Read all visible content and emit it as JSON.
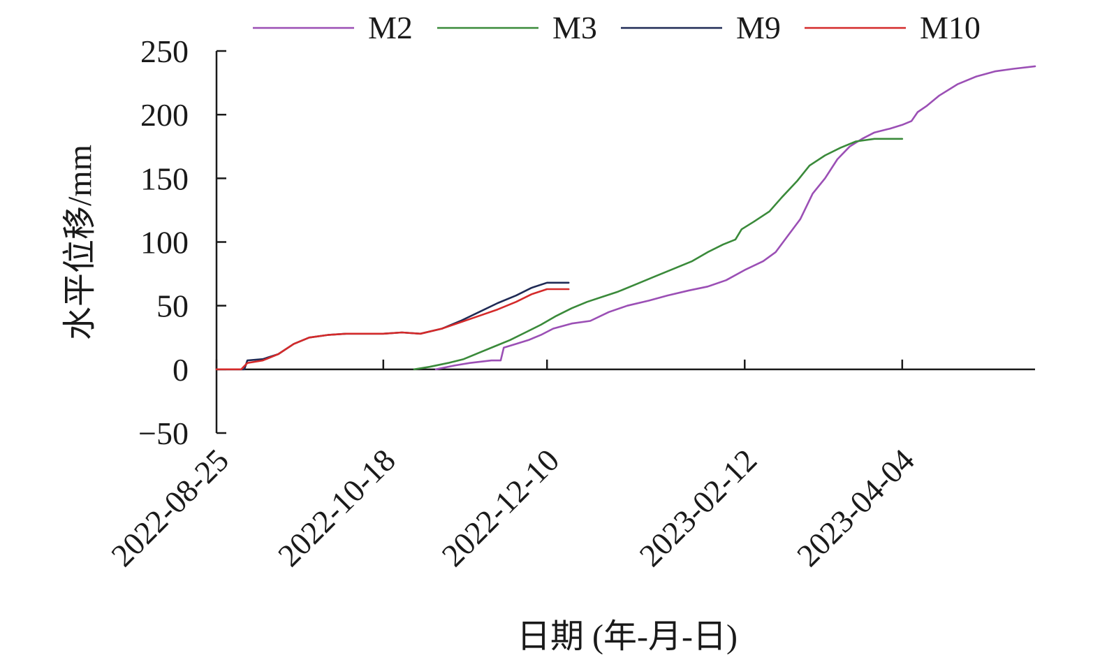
{
  "chart_data": {
    "type": "line",
    "xlabel": "日期 (年-月-日)",
    "ylabel": "水平位移/mm",
    "x_ticks": [
      "2022-08-25",
      "2022-10-18",
      "2022-12-10",
      "2023-02-12",
      "2023-04-04"
    ],
    "y_ticks": [
      250,
      200,
      150,
      100,
      50,
      0,
      -50
    ],
    "ylim": [
      -50,
      250
    ],
    "xlim": [
      "2022-08-25",
      "2023-05-17"
    ],
    "grid": false,
    "legend_position": "top",
    "series": [
      {
        "name": "M2",
        "color": "#9b4fb5",
        "points": [
          [
            "2022-11-04",
            0
          ],
          [
            "2022-11-10",
            3
          ],
          [
            "2022-11-15",
            5
          ],
          [
            "2022-11-22",
            7
          ],
          [
            "2022-11-25",
            7
          ],
          [
            "2022-11-26",
            17
          ],
          [
            "2022-11-30",
            20
          ],
          [
            "2022-12-04",
            23
          ],
          [
            "2022-12-08",
            27
          ],
          [
            "2022-12-12",
            32
          ],
          [
            "2022-12-18",
            36
          ],
          [
            "2022-12-24",
            38
          ],
          [
            "2022-12-30",
            45
          ],
          [
            "2023-01-05",
            50
          ],
          [
            "2023-01-12",
            54
          ],
          [
            "2023-01-18",
            58
          ],
          [
            "2023-01-25",
            62
          ],
          [
            "2023-01-31",
            65
          ],
          [
            "2023-02-06",
            70
          ],
          [
            "2023-02-12",
            78
          ],
          [
            "2023-02-18",
            85
          ],
          [
            "2023-02-22",
            92
          ],
          [
            "2023-02-26",
            105
          ],
          [
            "2023-03-02",
            118
          ],
          [
            "2023-03-06",
            138
          ],
          [
            "2023-03-10",
            150
          ],
          [
            "2023-03-14",
            165
          ],
          [
            "2023-03-18",
            175
          ],
          [
            "2023-03-22",
            181
          ],
          [
            "2023-03-26",
            186
          ],
          [
            "2023-03-31",
            189
          ],
          [
            "2023-04-04",
            192
          ],
          [
            "2023-04-07",
            195
          ],
          [
            "2023-04-09",
            202
          ],
          [
            "2023-04-12",
            207
          ],
          [
            "2023-04-16",
            215
          ],
          [
            "2023-04-22",
            224
          ],
          [
            "2023-04-28",
            230
          ],
          [
            "2023-05-04",
            234
          ],
          [
            "2023-05-10",
            236
          ],
          [
            "2023-05-17",
            238
          ]
        ]
      },
      {
        "name": "M3",
        "color": "#3a8a3a",
        "points": [
          [
            "2022-10-28",
            0
          ],
          [
            "2022-11-02",
            2
          ],
          [
            "2022-11-08",
            5
          ],
          [
            "2022-11-13",
            8
          ],
          [
            "2022-11-18",
            13
          ],
          [
            "2022-11-23",
            18
          ],
          [
            "2022-11-28",
            23
          ],
          [
            "2022-12-03",
            29
          ],
          [
            "2022-12-08",
            35
          ],
          [
            "2022-12-13",
            42
          ],
          [
            "2022-12-18",
            48
          ],
          [
            "2022-12-23",
            53
          ],
          [
            "2022-12-28",
            57
          ],
          [
            "2023-01-02",
            61
          ],
          [
            "2023-01-08",
            67
          ],
          [
            "2023-01-14",
            73
          ],
          [
            "2023-01-20",
            79
          ],
          [
            "2023-01-26",
            85
          ],
          [
            "2023-01-31",
            92
          ],
          [
            "2023-02-05",
            98
          ],
          [
            "2023-02-09",
            102
          ],
          [
            "2023-02-11",
            110
          ],
          [
            "2023-02-15",
            116
          ],
          [
            "2023-02-20",
            124
          ],
          [
            "2023-02-24",
            135
          ],
          [
            "2023-03-01",
            148
          ],
          [
            "2023-03-05",
            160
          ],
          [
            "2023-03-10",
            168
          ],
          [
            "2023-03-15",
            174
          ],
          [
            "2023-03-20",
            179
          ],
          [
            "2023-03-26",
            181
          ],
          [
            "2023-04-04",
            181
          ]
        ]
      },
      {
        "name": "M9",
        "color": "#1f2a55",
        "points": [
          [
            "2022-08-25",
            0
          ],
          [
            "2022-09-03",
            0
          ],
          [
            "2022-09-04",
            7
          ],
          [
            "2022-09-09",
            8
          ],
          [
            "2022-09-14",
            12
          ],
          [
            "2022-09-19",
            20
          ],
          [
            "2022-09-24",
            25
          ],
          [
            "2022-09-30",
            27
          ],
          [
            "2022-10-06",
            28
          ],
          [
            "2022-10-12",
            28
          ],
          [
            "2022-10-18",
            28
          ],
          [
            "2022-10-24",
            29
          ],
          [
            "2022-10-30",
            28
          ],
          [
            "2022-11-06",
            32
          ],
          [
            "2022-11-12",
            38
          ],
          [
            "2022-11-18",
            45
          ],
          [
            "2022-11-24",
            52
          ],
          [
            "2022-11-30",
            58
          ],
          [
            "2022-12-05",
            64
          ],
          [
            "2022-12-10",
            68
          ],
          [
            "2022-12-17",
            68
          ]
        ]
      },
      {
        "name": "M10",
        "color": "#d42a2a",
        "points": [
          [
            "2022-08-25",
            0
          ],
          [
            "2022-09-02",
            0
          ],
          [
            "2022-09-04",
            5
          ],
          [
            "2022-09-09",
            7
          ],
          [
            "2022-09-14",
            12
          ],
          [
            "2022-09-19",
            20
          ],
          [
            "2022-09-24",
            25
          ],
          [
            "2022-09-30",
            27
          ],
          [
            "2022-10-06",
            28
          ],
          [
            "2022-10-12",
            28
          ],
          [
            "2022-10-18",
            28
          ],
          [
            "2022-10-24",
            29
          ],
          [
            "2022-10-30",
            28
          ],
          [
            "2022-11-06",
            32
          ],
          [
            "2022-11-12",
            37
          ],
          [
            "2022-11-18",
            42
          ],
          [
            "2022-11-24",
            47
          ],
          [
            "2022-11-30",
            53
          ],
          [
            "2022-12-05",
            59
          ],
          [
            "2022-12-10",
            63
          ],
          [
            "2022-12-17",
            63
          ]
        ]
      }
    ]
  }
}
